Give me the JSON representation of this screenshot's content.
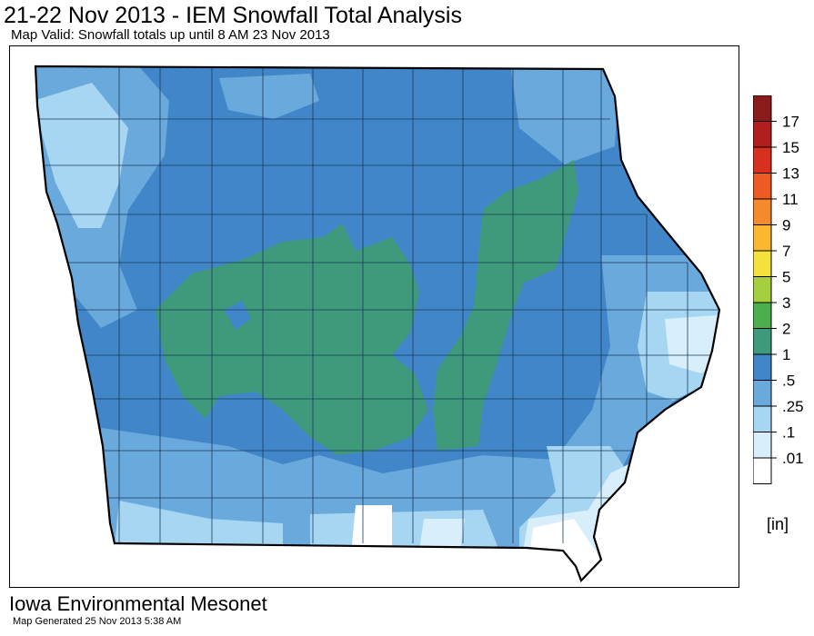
{
  "header": {
    "title": "21-22 Nov 2013 - IEM Snowfall Total Analysis",
    "subtitle": "Map Valid: Snowfall totals up until 8 AM 23 Nov 2013"
  },
  "map": {
    "region": "Iowa",
    "zones": [
      {
        "name": "western-green-band",
        "bin": "1"
      },
      {
        "name": "eastern-green-band",
        "bin": "1"
      }
    ]
  },
  "legend": {
    "unit": "[in]",
    "bins": [
      {
        "label": "17",
        "color": "#8b1a1a"
      },
      {
        "label": "15",
        "color": "#b01e1e"
      },
      {
        "label": "13",
        "color": "#d7301f"
      },
      {
        "label": "11",
        "color": "#ee5a24"
      },
      {
        "label": "9",
        "color": "#f58a2c"
      },
      {
        "label": "7",
        "color": "#fbb82f"
      },
      {
        "label": "5",
        "color": "#f5e13b"
      },
      {
        "label": "3",
        "color": "#a6cf3f"
      },
      {
        "label": "2",
        "color": "#4cae4c"
      },
      {
        "label": "1",
        "color": "#3e9a7a"
      },
      {
        "label": ".5",
        "color": "#4186c8"
      },
      {
        "label": ".25",
        "color": "#6aa9dc"
      },
      {
        "label": ".1",
        "color": "#a6d6f2"
      },
      {
        "label": ".01",
        "color": "#d8eefa"
      },
      {
        "label": "",
        "color": "#ffffff"
      }
    ]
  },
  "footer": {
    "org": "Iowa Environmental Mesonet",
    "generated": "Map Generated 25 Nov 2013 5:38 AM"
  }
}
